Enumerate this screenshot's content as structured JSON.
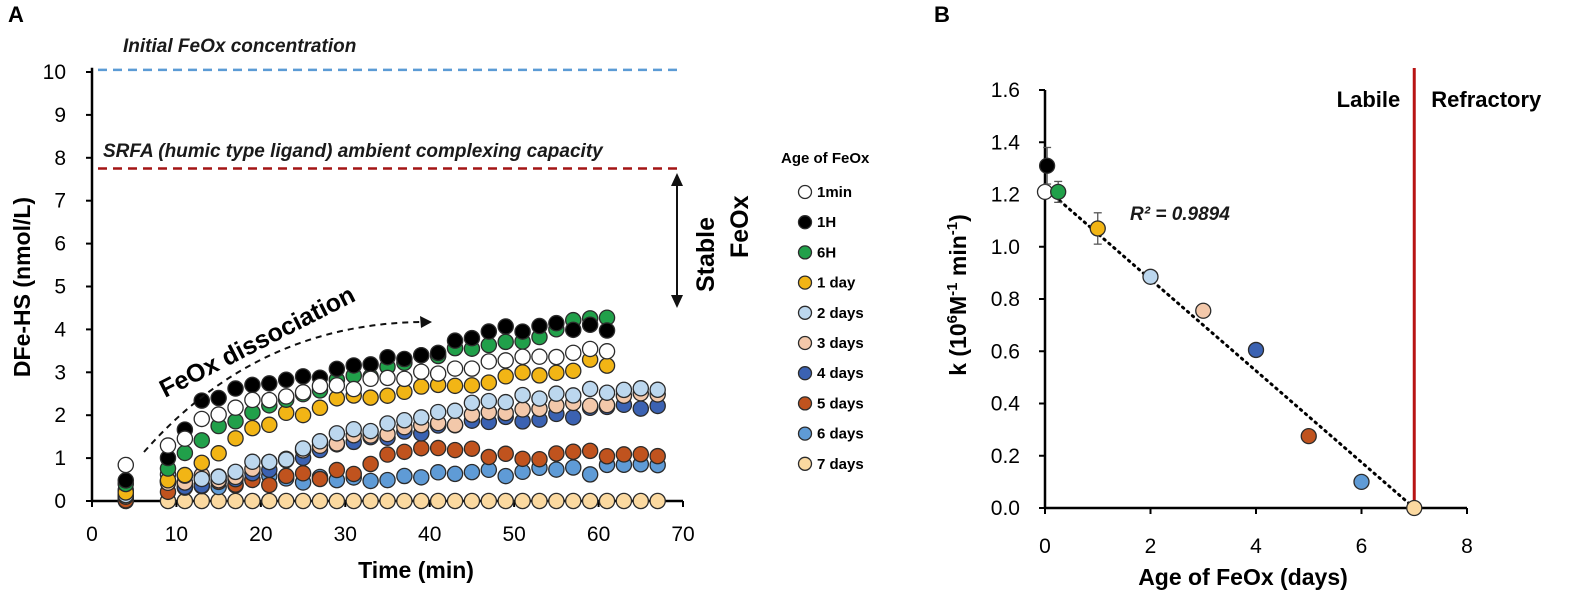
{
  "colors": {
    "1min": "#ffffff",
    "1H": "#000000",
    "6H": "#21a04a",
    "1 day": "#f2b515",
    "2 days": "#bcd7ee",
    "3 days": "#f3c8aa",
    "4 days": "#3b62b2",
    "5 days": "#c0531e",
    "6 days": "#5f9bd6",
    "7 days": "#fbd9a0",
    "initial_line": "#5b9bd5",
    "srfa_line": "#a31515",
    "boundary": "#b81414"
  },
  "chart_data": [
    {
      "panel": "A",
      "type": "scatter",
      "xlabel": "Time (min)",
      "ylabel": "DFe-HS (nmol/L)",
      "xlim": [
        0,
        70
      ],
      "ylim": [
        0,
        10
      ],
      "xticks": [
        "0",
        "10",
        "20",
        "30",
        "40",
        "50",
        "60",
        "70"
      ],
      "yticks": [
        "0",
        "1",
        "2",
        "3",
        "4",
        "5",
        "6",
        "7",
        "8",
        "9",
        "10"
      ],
      "legend_title": "Age of FeOx",
      "reference_lines": [
        {
          "name": "initial",
          "y": 10.05,
          "label": "Initial FeOx concentration"
        },
        {
          "name": "srfa",
          "y": 7.75,
          "label": "SRFA (humic type ligand) ambient complexing capacity"
        }
      ],
      "annotations": {
        "dissociation": "FeOx dissociation",
        "stable_1": "Stable",
        "stable_2": "FeOx"
      },
      "series": [
        {
          "name": "1min",
          "anchors": [
            [
              4,
              0.95
            ],
            [
              9,
              1.2
            ],
            [
              13,
              1.9
            ],
            [
              20,
              2.4
            ],
            [
              30,
              2.65
            ],
            [
              40,
              2.95
            ],
            [
              50,
              3.3
            ],
            [
              61,
              3.6
            ]
          ]
        },
        {
          "name": "1H",
          "anchors": [
            [
              4,
              0.55
            ],
            [
              9,
              0.95
            ],
            [
              13,
              2.35
            ],
            [
              20,
              2.7
            ],
            [
              30,
              3.1
            ],
            [
              40,
              3.45
            ],
            [
              50,
              4.05
            ],
            [
              61,
              4.05
            ]
          ]
        },
        {
          "name": "6H",
          "anchors": [
            [
              4,
              0.5
            ],
            [
              9,
              0.85
            ],
            [
              13,
              1.45
            ],
            [
              20,
              2.15
            ],
            [
              30,
              2.8
            ],
            [
              40,
              3.35
            ],
            [
              50,
              3.75
            ],
            [
              61,
              4.35
            ]
          ]
        },
        {
          "name": "1 day",
          "anchors": [
            [
              4,
              0.25
            ],
            [
              9,
              0.5
            ],
            [
              13,
              0.8
            ],
            [
              20,
              1.8
            ],
            [
              30,
              2.4
            ],
            [
              40,
              2.7
            ],
            [
              50,
              2.9
            ],
            [
              61,
              3.25
            ]
          ]
        },
        {
          "name": "2 days",
          "anchors": [
            [
              4,
              0.2
            ],
            [
              9,
              0.55
            ],
            [
              15,
              0.65
            ],
            [
              20,
              0.85
            ],
            [
              30,
              1.6
            ],
            [
              40,
              2.05
            ],
            [
              50,
              2.35
            ],
            [
              67,
              2.65
            ]
          ]
        },
        {
          "name": "3 days",
          "anchors": [
            [
              4,
              0.2
            ],
            [
              9,
              0.5
            ],
            [
              15,
              0.55
            ],
            [
              20,
              0.75
            ],
            [
              30,
              1.4
            ],
            [
              40,
              1.8
            ],
            [
              50,
              2.05
            ],
            [
              67,
              2.45
            ]
          ]
        },
        {
          "name": "4 days",
          "anchors": [
            [
              4,
              0.15
            ],
            [
              9,
              0.4
            ],
            [
              15,
              0.5
            ],
            [
              20,
              0.75
            ],
            [
              30,
              1.3
            ],
            [
              40,
              1.65
            ],
            [
              50,
              1.9
            ],
            [
              67,
              2.25
            ]
          ]
        },
        {
          "name": "5 days",
          "anchors": [
            [
              4,
              0.1
            ],
            [
              9,
              0.3
            ],
            [
              20,
              0.45
            ],
            [
              30,
              0.65
            ],
            [
              38,
              1.2
            ],
            [
              50,
              1.05
            ],
            [
              67,
              1.15
            ]
          ]
        },
        {
          "name": "6 days",
          "anchors": [
            [
              4,
              0.1
            ],
            [
              9,
              0.35
            ],
            [
              20,
              0.5
            ],
            [
              30,
              0.55
            ],
            [
              40,
              0.55
            ],
            [
              50,
              0.65
            ],
            [
              67,
              0.8
            ]
          ]
        },
        {
          "name": "7 days",
          "anchors": [
            [
              4,
              0.0
            ],
            [
              67,
              0.0
            ]
          ]
        }
      ]
    },
    {
      "panel": "B",
      "type": "scatter",
      "xlabel": "Age of FeOx (days)",
      "ylabel_parts": [
        "k (10",
        "6",
        "M",
        "-1",
        " min",
        "-1",
        ")"
      ],
      "xlim": [
        0,
        8
      ],
      "ylim": [
        0.0,
        1.6
      ],
      "xticks": [
        "0",
        "2",
        "4",
        "6",
        "8"
      ],
      "yticks": [
        "0.0",
        "0.2",
        "0.4",
        "0.6",
        "0.8",
        "1.0",
        "1.2",
        "1.4",
        "1.6"
      ],
      "r2_label": "R² = 0.9894",
      "trendline": {
        "x": [
          0,
          7
        ],
        "y": [
          1.225,
          0.0
        ]
      },
      "boundary_x": 7,
      "regions": {
        "labile": "Labile",
        "refractory": "Refractory"
      },
      "points": [
        {
          "name": "1min",
          "x": 0.0,
          "y": 1.21,
          "err": 0
        },
        {
          "name": "1H",
          "x": 0.04,
          "y": 1.31,
          "err": 0.07
        },
        {
          "name": "6H",
          "x": 0.25,
          "y": 1.21,
          "err": 0.04
        },
        {
          "name": "1 day",
          "x": 1.0,
          "y": 1.07,
          "err": 0.06
        },
        {
          "name": "2 days",
          "x": 2.0,
          "y": 0.885,
          "err": 0
        },
        {
          "name": "3 days",
          "x": 3.0,
          "y": 0.755,
          "err": 0
        },
        {
          "name": "4 days",
          "x": 4.0,
          "y": 0.605,
          "err": 0
        },
        {
          "name": "5 days",
          "x": 5.0,
          "y": 0.275,
          "err": 0
        },
        {
          "name": "6 days",
          "x": 6.0,
          "y": 0.1,
          "err": 0
        },
        {
          "name": "7 days",
          "x": 7.0,
          "y": 0.0,
          "err": 0
        }
      ]
    }
  ]
}
